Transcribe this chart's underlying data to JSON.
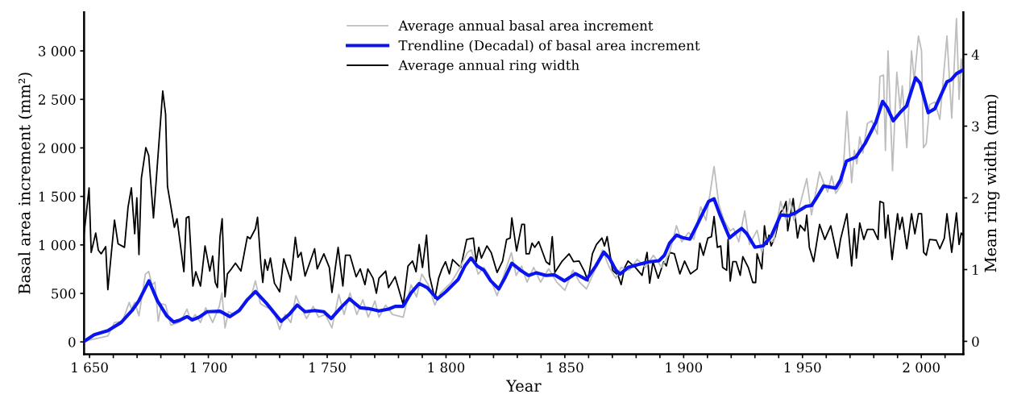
{
  "chart_data": {
    "type": "line",
    "xlabel": "Year",
    "ylabel": "Basal area increment (mm²)",
    "y2label": "Mean ring width (mm)",
    "xlim": [
      1647.7,
      2017.7
    ],
    "ylim": [
      -127,
      3400
    ],
    "y2lim": [
      -0.18,
      4.59
    ],
    "xticks": [
      {
        "value": 1650,
        "label": "1 650"
      },
      {
        "value": 1660,
        "label": null
      },
      {
        "value": 1670,
        "label": null
      },
      {
        "value": 1680,
        "label": null
      },
      {
        "value": 1690,
        "label": null
      },
      {
        "value": 1700,
        "label": "1 700"
      },
      {
        "value": 1710,
        "label": null
      },
      {
        "value": 1720,
        "label": null
      },
      {
        "value": 1730,
        "label": null
      },
      {
        "value": 1740,
        "label": null
      },
      {
        "value": 1750,
        "label": "1 750"
      },
      {
        "value": 1760,
        "label": null
      },
      {
        "value": 1770,
        "label": null
      },
      {
        "value": 1780,
        "label": null
      },
      {
        "value": 1790,
        "label": null
      },
      {
        "value": 1800,
        "label": "1 800"
      },
      {
        "value": 1810,
        "label": null
      },
      {
        "value": 1820,
        "label": null
      },
      {
        "value": 1830,
        "label": null
      },
      {
        "value": 1840,
        "label": null
      },
      {
        "value": 1850,
        "label": "1 850"
      },
      {
        "value": 1860,
        "label": null
      },
      {
        "value": 1870,
        "label": null
      },
      {
        "value": 1880,
        "label": null
      },
      {
        "value": 1890,
        "label": null
      },
      {
        "value": 1900,
        "label": "1 900"
      },
      {
        "value": 1910,
        "label": null
      },
      {
        "value": 1920,
        "label": null
      },
      {
        "value": 1930,
        "label": null
      },
      {
        "value": 1940,
        "label": null
      },
      {
        "value": 1950,
        "label": "1 950"
      },
      {
        "value": 1960,
        "label": null
      },
      {
        "value": 1970,
        "label": null
      },
      {
        "value": 1980,
        "label": null
      },
      {
        "value": 1990,
        "label": null
      },
      {
        "value": 2000,
        "label": "2 000"
      },
      {
        "value": 2010,
        "label": null
      }
    ],
    "yticks": [
      0,
      500,
      {
        "value": 1000,
        "label": "1 000"
      },
      {
        "value": 1500,
        "label": "1 500"
      },
      {
        "value": 2000,
        "label": "2 000"
      },
      {
        "value": 2500,
        "label": "2 500"
      },
      {
        "value": 3000,
        "label": "3 000"
      }
    ],
    "y2ticks": [
      0,
      1,
      2,
      3,
      4
    ],
    "legend": "top",
    "grid": false,
    "marker": "none",
    "line_style": "solid",
    "series": [
      {
        "name": "Average annual basal area increment",
        "color": "#bdbdbd",
        "axis": "y",
        "x": [
          1647.7,
          1657.7,
          1660.5,
          1663.9,
          1666.7,
          1667.6,
          1669,
          1670.8,
          1673.5,
          1674.9,
          1676.3,
          1677.5,
          1678.9,
          1680.3,
          1682,
          1684.2,
          1687.6,
          1689.3,
          1691,
          1692.7,
          1694.4,
          1696.7,
          1698.9,
          1701.8,
          1704.6,
          1705.7,
          1707,
          1708.5,
          1710.8,
          1718.1,
          1719.8,
          1721.9,
          1723.8,
          1726.1,
          1728,
          1730,
          1732.3,
          1734.7,
          1736.8,
          1738.8,
          1741.3,
          1744.1,
          1746.4,
          1749.2,
          1752,
          1754.9,
          1757.1,
          1759.6,
          1762.5,
          1765,
          1767.3,
          1770.1,
          1771.8,
          1774.6,
          1777.5,
          1782,
          1785.3,
          1787.6,
          1789.8,
          1792.6,
          1795.3,
          1797.7,
          1802.3,
          1805.6,
          1809,
          1810.7,
          1813.5,
          1815.9,
          1818.1,
          1821.5,
          1827.5,
          1829.5,
          1831.8,
          1834.1,
          1836.9,
          1839.8,
          1843.2,
          1846.6,
          1850,
          1853.4,
          1856.2,
          1859.1,
          1862.4,
          1865.8,
          1868.7,
          1871.5,
          1873.7,
          1877.1,
          1880.5,
          1883.9,
          1887.3,
          1890.7,
          1894.1,
          1897,
          1899.2,
          1902.1,
          1904.3,
          1907.2,
          1909.4,
          1912.8,
          1914.8,
          1917,
          1919.6,
          1921,
          1923.2,
          1925.7,
          1927.7,
          1930.9,
          1932.9,
          1934.5,
          1937.9,
          1940.8,
          1943.1,
          1944.7,
          1946.4,
          1948.7,
          1951.8,
          1953.8,
          1957.2,
          1958.9,
          1960.6,
          1962.3,
          1964,
          1966.8,
          1968.7,
          1970.7,
          1971.8,
          1972.9,
          1974.1,
          1975.4,
          1977.3,
          1979.2,
          1981.5,
          1982.6,
          1984.1,
          1984.9,
          1986,
          1987.9,
          1989.7,
          1991.1,
          1992,
          1993.9,
          1995.9,
          1997,
          1998.8,
          2000.1,
          2000.9,
          2002.1,
          2003.5,
          2005.7,
          2007.8,
          2009.1,
          2010.8,
          2012.8,
          2014.8,
          2015.9,
          2016.8,
          2017.5
        ],
        "values": [
          6,
          61,
          200,
          213,
          408,
          338,
          408,
          269,
          699,
          727,
          588,
          616,
          213,
          394,
          380,
          172,
          200,
          255,
          338,
          213,
          283,
          200,
          352,
          200,
          366,
          505,
          144,
          311,
          283,
          477,
          630,
          394,
          366,
          338,
          283,
          130,
          283,
          200,
          477,
          366,
          241,
          366,
          255,
          283,
          144,
          491,
          283,
          505,
          283,
          435,
          255,
          422,
          255,
          380,
          283,
          255,
          588,
          463,
          699,
          588,
          380,
          505,
          616,
          754,
          921,
          948,
          699,
          768,
          685,
          477,
          921,
          685,
          782,
          616,
          768,
          616,
          754,
          616,
          532,
          740,
          616,
          546,
          727,
          948,
          768,
          657,
          768,
          740,
          851,
          768,
          893,
          768,
          921,
          1198,
          1032,
          1129,
          1059,
          1392,
          1253,
          1808,
          1420,
          1253,
          1143,
          1170,
          1032,
          1351,
          1004,
          1151,
          921,
          1059,
          1032,
          1448,
          1253,
          1475,
          1253,
          1392,
          1683,
          1309,
          1753,
          1642,
          1545,
          1711,
          1531,
          1642,
          2377,
          1642,
          1975,
          1836,
          2113,
          1947,
          2252,
          2280,
          2141,
          2737,
          2751,
          1975,
          3000,
          1766,
          2779,
          2404,
          2640,
          2003,
          3000,
          2695,
          3153,
          3000,
          2003,
          2044,
          2446,
          2474,
          2293,
          2668,
          3153,
          2307,
          3333,
          2501,
          2917,
          2723
        ]
      },
      {
        "name": "Trendline (Decadal) of basal area increment",
        "color": "#0a14f0",
        "axis": "y",
        "x": [
          1647.7,
          1652,
          1657.7,
          1663.3,
          1667.9,
          1670.7,
          1675,
          1678.6,
          1682.5,
          1685.4,
          1688.2,
          1691,
          1693.3,
          1696.1,
          1699.5,
          1704.9,
          1709.1,
          1713,
          1716.4,
          1719.8,
          1724.4,
          1730.6,
          1734,
          1737.4,
          1740.7,
          1744.7,
          1748.6,
          1751.7,
          1756,
          1759.4,
          1763.9,
          1767.3,
          1771.8,
          1775.8,
          1778.6,
          1781.9,
          1785.3,
          1788.7,
          1792.1,
          1796.4,
          1800,
          1805.1,
          1807.9,
          1810.5,
          1813.1,
          1815.9,
          1818.8,
          1822.2,
          1825,
          1827.7,
          1831.3,
          1834.7,
          1838.1,
          1842.1,
          1845.5,
          1849.8,
          1854.5,
          1859.1,
          1863,
          1866.4,
          1868.7,
          1871.5,
          1873.2,
          1876.6,
          1880.5,
          1885.1,
          1889.6,
          1891.9,
          1894.1,
          1897,
          1899.8,
          1902.6,
          1905.5,
          1907.7,
          1910.5,
          1912.8,
          1915.3,
          1919.3,
          1922.1,
          1924.4,
          1926.6,
          1930,
          1933.4,
          1936.8,
          1940.8,
          1944.2,
          1947.5,
          1951.5,
          1953.8,
          1956,
          1958.9,
          1964,
          1966,
          1968.5,
          1972.5,
          1976.3,
          1980.9,
          1983.7,
          1985.6,
          1988.2,
          1991,
          1993.8,
          1997.6,
          1999.5,
          2002.9,
          2005.7,
          2010.8,
          2012.5,
          2014.8,
          2017.2
        ],
        "values": [
          6,
          75,
          116,
          200,
          324,
          422,
          630,
          422,
          269,
          205,
          227,
          261,
          227,
          255,
          311,
          316,
          261,
          324,
          435,
          519,
          399,
          213,
          283,
          380,
          311,
          324,
          311,
          241,
          360,
          444,
          352,
          344,
          319,
          338,
          366,
          366,
          505,
          602,
          560,
          444,
          519,
          643,
          782,
          865,
          782,
          740,
          630,
          546,
          671,
          810,
          740,
          685,
          713,
          685,
          693,
          630,
          704,
          643,
          782,
          926,
          865,
          740,
          699,
          768,
          796,
          824,
          837,
          893,
          1018,
          1101,
          1073,
          1059,
          1198,
          1309,
          1448,
          1475,
          1309,
          1073,
          1129,
          1170,
          1115,
          976,
          990,
          1087,
          1309,
          1301,
          1337,
          1398,
          1406,
          1489,
          1608,
          1586,
          1669,
          1864,
          1905,
          2044,
          2266,
          2479,
          2418,
          2280,
          2363,
          2432,
          2723,
          2668,
          2363,
          2404,
          2682,
          2701,
          2765,
          2798
        ]
      },
      {
        "name": "Average annual ring width",
        "color": "#000000",
        "axis": "y2",
        "x": [
          1647.7,
          1649.8,
          1650.7,
          1652.6,
          1653.7,
          1654.9,
          1656.8,
          1657.7,
          1660.5,
          1662,
          1664.7,
          1666.2,
          1667.6,
          1669,
          1669.9,
          1670.8,
          1671.8,
          1673.7,
          1674.9,
          1676.9,
          1680.8,
          1682,
          1682.8,
          1685.7,
          1686.8,
          1689.7,
          1690.7,
          1691.8,
          1693.5,
          1694.7,
          1696.7,
          1698.6,
          1700.6,
          1701.8,
          1702.9,
          1703.8,
          1704.9,
          1705.8,
          1707,
          1708,
          1709.7,
          1711.4,
          1713.7,
          1716.4,
          1717.6,
          1719.8,
          1720.7,
          1722.1,
          1722.9,
          1723.8,
          1724.9,
          1726.1,
          1727.8,
          1730,
          1731.7,
          1734.7,
          1736.6,
          1737.7,
          1739,
          1740.7,
          1744.7,
          1745.8,
          1748.6,
          1750.9,
          1752,
          1754.6,
          1756.6,
          1757.7,
          1759.6,
          1762.2,
          1763.9,
          1765.9,
          1767.1,
          1769.3,
          1770.7,
          1771.8,
          1774.6,
          1775.8,
          1778.6,
          1782,
          1784,
          1785.9,
          1787.4,
          1788.7,
          1790.1,
          1791.8,
          1793,
          1795.3,
          1796.9,
          1798.3,
          1799.8,
          1801.4,
          1802.8,
          1806.2,
          1808.7,
          1811.5,
          1812.7,
          1813.8,
          1814.9,
          1817.2,
          1819,
          1821.5,
          1823.8,
          1825.5,
          1827,
          1827.7,
          1829.7,
          1831.9,
          1833,
          1833.7,
          1835,
          1836.2,
          1837.3,
          1839,
          1842.1,
          1843.6,
          1844.7,
          1845.8,
          1848.7,
          1851.8,
          1853.7,
          1856,
          1858.3,
          1859.7,
          1861.6,
          1863.3,
          1865.6,
          1866.7,
          1867.8,
          1870.1,
          1872.4,
          1873.7,
          1875.2,
          1876.6,
          1879.7,
          1882.5,
          1884.6,
          1885.7,
          1887.1,
          1889.3,
          1891.6,
          1892.7,
          1894.1,
          1896.1,
          1898.4,
          1900.4,
          1902.9,
          1905.7,
          1906.8,
          1908.3,
          1910.2,
          1911.7,
          1912.8,
          1914.2,
          1915.6,
          1916.4,
          1918.1,
          1918.7,
          1919.6,
          1920.7,
          1922.1,
          1923.8,
          1924.9,
          1927.2,
          1929.1,
          1930.3,
          1930.9,
          1932.9,
          1934,
          1935.1,
          1935.9,
          1936.8,
          1938.5,
          1940.8,
          1941.9,
          1943.1,
          1943.8,
          1946.1,
          1947.9,
          1949,
          1951,
          1951.8,
          1952.9,
          1954.7,
          1957.2,
          1959.4,
          1961.9,
          1964.8,
          1966,
          1968.7,
          1970.7,
          1971.8,
          1972.7,
          1974.1,
          1975.8,
          1977.3,
          1979.8,
          1981.8,
          1982.6,
          1984.1,
          1984.9,
          1986,
          1987.7,
          1990,
          1990.9,
          1992,
          1993.9,
          1995.9,
          1997.3,
          1998.8,
          2000.1,
          2001,
          2002.1,
          2003.5,
          2006.3,
          2007.8,
          2009.7,
          2010.8,
          2012.8,
          2014.8,
          2015.9,
          2016.8,
          2017.5
        ],
        "values": [
          1.5,
          2.14,
          1.24,
          1.51,
          1.27,
          1.22,
          1.32,
          0.72,
          1.69,
          1.36,
          1.31,
          1.87,
          2.14,
          1.5,
          2.0,
          1.21,
          2.27,
          2.7,
          2.59,
          1.72,
          3.49,
          3.17,
          2.16,
          1.59,
          1.71,
          0.97,
          1.72,
          1.74,
          0.77,
          0.97,
          0.77,
          1.33,
          0.98,
          1.19,
          0.82,
          0.75,
          1.46,
          1.71,
          0.62,
          0.94,
          1.01,
          1.09,
          0.98,
          1.46,
          1.43,
          1.57,
          1.73,
          1.07,
          0.82,
          1.14,
          0.99,
          1.16,
          0.81,
          0.69,
          1.15,
          0.85,
          1.45,
          1.17,
          1.24,
          0.91,
          1.29,
          1.01,
          1.22,
          1.03,
          0.68,
          1.31,
          0.77,
          1.2,
          1.2,
          0.9,
          1.01,
          0.79,
          1.01,
          0.88,
          0.67,
          0.88,
          0.98,
          0.75,
          0.9,
          0.51,
          1.05,
          1.12,
          0.97,
          1.35,
          1.03,
          1.48,
          0.92,
          0.6,
          0.88,
          1.01,
          1.11,
          0.94,
          1.14,
          1.03,
          1.42,
          1.44,
          1.11,
          1.31,
          1.16,
          1.33,
          1.24,
          0.96,
          1.12,
          1.42,
          1.44,
          1.72,
          1.26,
          1.63,
          1.63,
          1.22,
          1.22,
          1.37,
          1.31,
          1.39,
          1.11,
          1.07,
          1.46,
          0.96,
          1.11,
          1.22,
          1.11,
          1.12,
          0.97,
          0.84,
          1.22,
          1.35,
          1.44,
          1.33,
          1.46,
          0.99,
          0.92,
          0.79,
          1.03,
          1.12,
          1.03,
          0.92,
          1.24,
          0.81,
          1.11,
          0.88,
          1.11,
          1.05,
          1.24,
          1.22,
          0.94,
          1.12,
          0.94,
          1.01,
          1.37,
          1.2,
          1.44,
          1.46,
          1.74,
          1.31,
          1.33,
          1.03,
          0.99,
          1.42,
          0.84,
          1.11,
          1.11,
          0.92,
          1.18,
          1.03,
          0.82,
          0.82,
          1.22,
          1.01,
          1.61,
          1.35,
          1.48,
          1.33,
          1.46,
          1.8,
          1.84,
          1.95,
          1.54,
          1.99,
          1.44,
          1.62,
          1.54,
          1.76,
          1.31,
          1.11,
          1.63,
          1.42,
          1.61,
          1.16,
          1.42,
          1.78,
          1.05,
          1.57,
          1.16,
          1.65,
          1.42,
          1.56,
          1.56,
          1.42,
          1.95,
          1.93,
          1.44,
          1.76,
          1.14,
          1.78,
          1.56,
          1.73,
          1.29,
          1.78,
          1.5,
          1.78,
          1.78,
          1.24,
          1.2,
          1.42,
          1.41,
          1.29,
          1.44,
          1.78,
          1.24,
          1.79,
          1.35,
          1.51,
          1.48
        ]
      }
    ]
  }
}
